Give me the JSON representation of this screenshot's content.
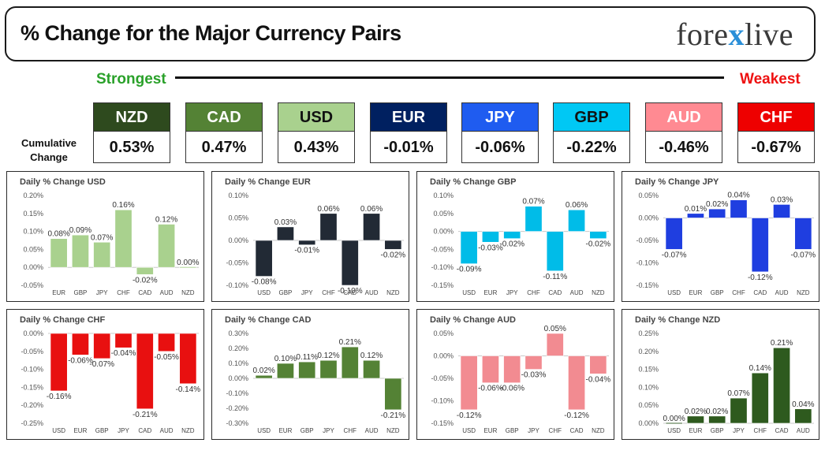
{
  "header": {
    "title": "% Change for the Major Currency Pairs",
    "logo_left": "fore",
    "logo_x": "x",
    "logo_right": "live"
  },
  "ranking": {
    "strongest_label": "Strongest",
    "weakest_label": "Weakest",
    "cumulative_label_line1": "Cumulative",
    "cumulative_label_line2": "Change",
    "currencies": [
      {
        "code": "NZD",
        "value": "0.53%",
        "bg": "#2e4a1e",
        "fg": "#ffffff"
      },
      {
        "code": "CAD",
        "value": "0.47%",
        "bg": "#548235",
        "fg": "#ffffff"
      },
      {
        "code": "USD",
        "value": "0.43%",
        "bg": "#a9d18e",
        "fg": "#111111"
      },
      {
        "code": "EUR",
        "value": "-0.01%",
        "bg": "#002060",
        "fg": "#ffffff"
      },
      {
        "code": "JPY",
        "value": "-0.06%",
        "bg": "#1f5cf0",
        "fg": "#ffffff"
      },
      {
        "code": "GBP",
        "value": "-0.22%",
        "bg": "#00c8f4",
        "fg": "#111111"
      },
      {
        "code": "AUD",
        "value": "-0.46%",
        "bg": "#ff8a92",
        "fg": "#ffffff"
      },
      {
        "code": "CHF",
        "value": "-0.67%",
        "bg": "#ee0000",
        "fg": "#ffffff"
      }
    ]
  },
  "chart_data": [
    {
      "type": "bar",
      "title": "Daily % Change USD",
      "color": "#a9d18e",
      "categories": [
        "EUR",
        "GBP",
        "JPY",
        "CHF",
        "CAD",
        "AUD",
        "NZD"
      ],
      "values": [
        0.08,
        0.09,
        0.07,
        0.16,
        -0.02,
        0.12,
        0.0
      ],
      "labels": [
        "0.08%",
        "0.09%",
        "0.07%",
        "0.16%",
        "-0.02%",
        "0.12%",
        "0.00%"
      ],
      "yticks": [
        0.2,
        0.15,
        0.1,
        0.05,
        0.0,
        -0.05
      ],
      "ytick_labels": [
        "0.20%",
        "0.15%",
        "0.10%",
        "0.05%",
        "0.00%",
        "-0.05%"
      ],
      "ylim": [
        -0.05,
        0.2
      ]
    },
    {
      "type": "bar",
      "title": "Daily % Change EUR",
      "color": "#222a35",
      "categories": [
        "USD",
        "GBP",
        "JPY",
        "CHF",
        "CAD",
        "AUD",
        "NZD"
      ],
      "values": [
        -0.08,
        0.03,
        -0.01,
        0.06,
        -0.1,
        0.06,
        -0.02
      ],
      "labels": [
        "-0.08%",
        "0.03%",
        "-0.01%",
        "0.06%",
        "-0.10%",
        "0.06%",
        "-0.02%"
      ],
      "yticks": [
        0.1,
        0.05,
        0.0,
        -0.05,
        -0.1
      ],
      "ytick_labels": [
        "0.10%",
        "0.05%",
        "0.00%",
        "-0.05%",
        "-0.10%"
      ],
      "ylim": [
        -0.1,
        0.1
      ]
    },
    {
      "type": "bar",
      "title": "Daily % Change GBP",
      "color": "#00bce8",
      "categories": [
        "USD",
        "EUR",
        "JPY",
        "CHF",
        "CAD",
        "AUD",
        "NZD"
      ],
      "values": [
        -0.09,
        -0.03,
        -0.02,
        0.07,
        -0.11,
        0.06,
        -0.02
      ],
      "labels": [
        "-0.09%",
        "-0.03%",
        "-0.02%",
        "0.07%",
        "-0.11%",
        "0.06%",
        "-0.02%"
      ],
      "yticks": [
        0.1,
        0.05,
        0.0,
        -0.05,
        -0.1,
        -0.15
      ],
      "ytick_labels": [
        "0.10%",
        "0.05%",
        "0.00%",
        "-0.05%",
        "-0.10%",
        "-0.15%"
      ],
      "ylim": [
        -0.15,
        0.1
      ]
    },
    {
      "type": "bar",
      "title": "Daily % Change JPY",
      "color": "#1f3ee0",
      "categories": [
        "USD",
        "EUR",
        "GBP",
        "CHF",
        "CAD",
        "AUD",
        "NZD"
      ],
      "values": [
        -0.07,
        0.01,
        0.02,
        0.04,
        -0.12,
        0.03,
        -0.07
      ],
      "labels": [
        "-0.07%",
        "0.01%",
        "0.02%",
        "0.04%",
        "-0.12%",
        "0.03%",
        "-0.07%"
      ],
      "yticks": [
        0.05,
        0.0,
        -0.05,
        -0.1,
        -0.15
      ],
      "ytick_labels": [
        "0.05%",
        "0.00%",
        "-0.05%",
        "-0.10%",
        "-0.15%"
      ],
      "ylim": [
        -0.15,
        0.05
      ]
    },
    {
      "type": "bar",
      "title": "Daily % Change CHF",
      "color": "#e81010",
      "categories": [
        "USD",
        "EUR",
        "GBP",
        "JPY",
        "CAD",
        "AUD",
        "NZD"
      ],
      "values": [
        -0.16,
        -0.06,
        -0.07,
        -0.04,
        -0.21,
        -0.05,
        -0.14
      ],
      "labels": [
        "-0.16%",
        "-0.06%",
        "-0.07%",
        "-0.04%",
        "-0.21%",
        "-0.05%",
        "-0.14%"
      ],
      "yticks": [
        0.0,
        -0.05,
        -0.1,
        -0.15,
        -0.2,
        -0.25
      ],
      "ytick_labels": [
        "0.00%",
        "-0.05%",
        "-0.10%",
        "-0.15%",
        "-0.20%",
        "-0.25%"
      ],
      "ylim": [
        -0.25,
        0.0
      ]
    },
    {
      "type": "bar",
      "title": "Daily % Change CAD",
      "color": "#548235",
      "categories": [
        "USD",
        "EUR",
        "GBP",
        "JPY",
        "CHF",
        "AUD",
        "NZD"
      ],
      "values": [
        0.02,
        0.1,
        0.11,
        0.12,
        0.21,
        0.12,
        -0.21
      ],
      "labels": [
        "0.02%",
        "0.10%",
        "0.11%",
        "0.12%",
        "0.21%",
        "0.12%",
        "-0.21%"
      ],
      "yticks": [
        0.3,
        0.2,
        0.1,
        0.0,
        -0.1,
        -0.2,
        -0.3
      ],
      "ytick_labels": [
        "0.30%",
        "0.20%",
        "0.10%",
        "0.00%",
        "-0.10%",
        "-0.20%",
        "-0.30%"
      ],
      "ylim": [
        -0.3,
        0.3
      ]
    },
    {
      "type": "bar",
      "title": "Daily % Change AUD",
      "color": "#f28b91",
      "categories": [
        "USD",
        "EUR",
        "GBP",
        "JPY",
        "CHF",
        "CAD",
        "NZD"
      ],
      "values": [
        -0.12,
        -0.06,
        -0.06,
        -0.03,
        0.05,
        -0.12,
        -0.04
      ],
      "labels": [
        "-0.12%",
        "-0.06%",
        "-0.06%",
        "-0.03%",
        "0.05%",
        "-0.12%",
        "-0.04%"
      ],
      "yticks": [
        0.05,
        0.0,
        -0.05,
        -0.1,
        -0.15
      ],
      "ytick_labels": [
        "0.05%",
        "0.00%",
        "-0.05%",
        "-0.10%",
        "-0.15%"
      ],
      "ylim": [
        -0.15,
        0.05
      ]
    },
    {
      "type": "bar",
      "title": "Daily % Change NZD",
      "color": "#2e5a1e",
      "categories": [
        "USD",
        "EUR",
        "GBP",
        "JPY",
        "CHF",
        "CAD",
        "AUD"
      ],
      "values": [
        0.0,
        0.02,
        0.02,
        0.07,
        0.14,
        0.21,
        0.04
      ],
      "labels": [
        "0.00%",
        "0.02%",
        "0.02%",
        "0.07%",
        "0.14%",
        "0.21%",
        "0.04%"
      ],
      "yticks": [
        0.25,
        0.2,
        0.15,
        0.1,
        0.05,
        0.0
      ],
      "ytick_labels": [
        "0.25%",
        "0.20%",
        "0.15%",
        "0.10%",
        "0.05%",
        "0.00%"
      ],
      "ylim": [
        0.0,
        0.25
      ]
    }
  ]
}
